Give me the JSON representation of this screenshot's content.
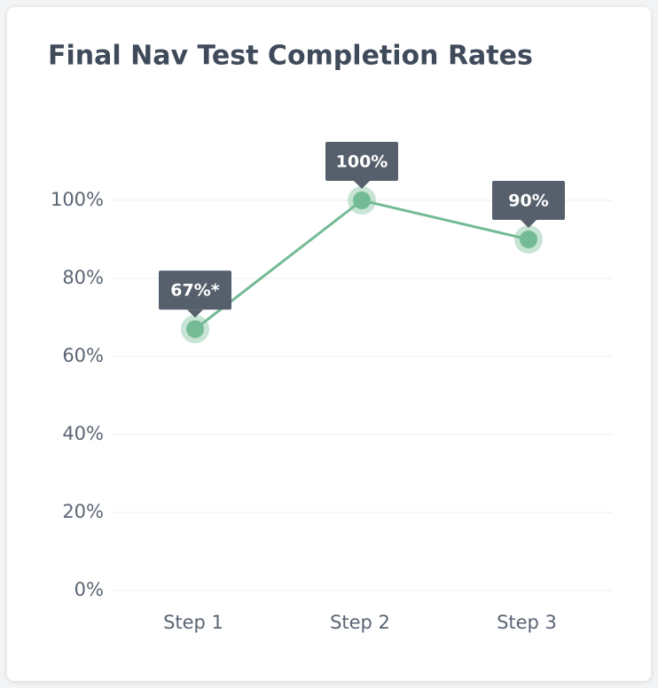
{
  "chart_data": {
    "type": "line",
    "title": "Final Nav Test Completion Rates",
    "categories": [
      "Step 1",
      "Step 2",
      "Step 3"
    ],
    "values": [
      67,
      100,
      90
    ],
    "value_labels": [
      "67%*",
      "100%",
      "90%"
    ],
    "color": "#74bb95",
    "ylim": [
      0,
      100
    ],
    "yticks": [
      {
        "value": 0,
        "label": "0%"
      },
      {
        "value": 20,
        "label": "20%"
      },
      {
        "value": 40,
        "label": "40%"
      },
      {
        "value": 60,
        "label": "60%"
      },
      {
        "value": 80,
        "label": "80%"
      },
      {
        "value": 100,
        "label": "100%"
      }
    ],
    "grid": true
  }
}
